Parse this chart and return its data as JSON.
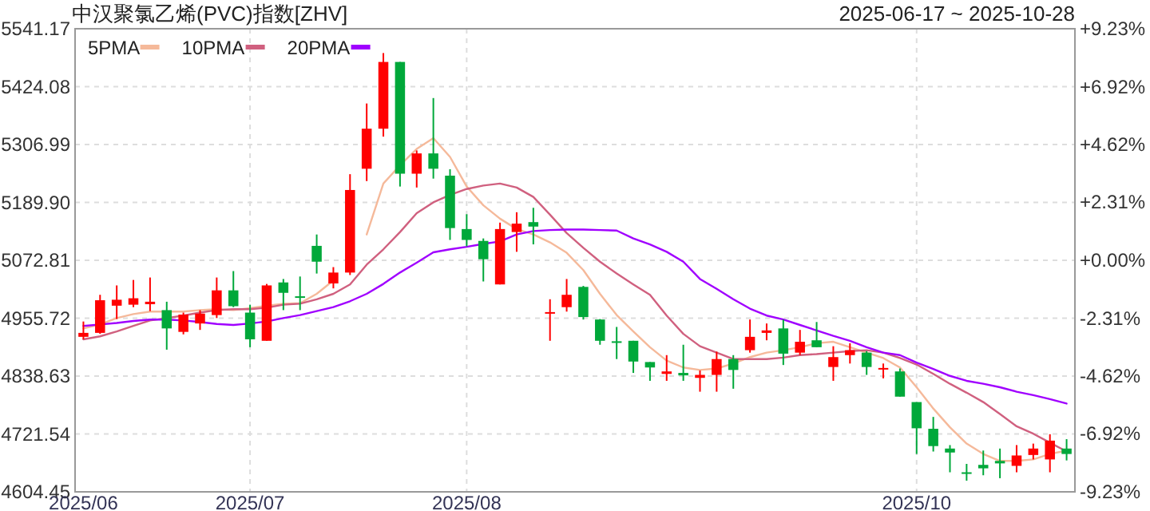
{
  "chart_data": {
    "type": "candlestick",
    "title": "中汉聚氯乙烯(PVC)指数[ZHV]",
    "subtitle": "2025-06-17 ~ 2025-10-28",
    "categories": [
      "2025/06",
      null,
      null,
      null,
      null,
      null,
      null,
      null,
      null,
      null,
      "2025/07",
      null,
      null,
      null,
      null,
      null,
      null,
      null,
      null,
      null,
      null,
      null,
      null,
      "2025/08",
      null,
      null,
      null,
      null,
      null,
      null,
      null,
      null,
      null,
      null,
      null,
      null,
      null,
      null,
      null,
      null,
      null,
      null,
      null,
      null,
      null,
      null,
      null,
      null,
      null,
      null,
      "2025/10",
      null,
      null,
      null,
      null,
      null,
      null,
      null,
      null,
      null
    ],
    "ohlc": [
      [
        4918,
        4949,
        4913,
        4926
      ],
      [
        4926,
        5003,
        4924,
        4992
      ],
      [
        4981,
        5022,
        4954,
        4993
      ],
      [
        4983,
        5033,
        4978,
        4996
      ],
      [
        4984,
        5038,
        4970,
        4989
      ],
      [
        4972,
        4989,
        4892,
        4935
      ],
      [
        4928,
        4967,
        4923,
        4963
      ],
      [
        4945,
        4972,
        4932,
        4965
      ],
      [
        4962,
        5038,
        4956,
        5012
      ],
      [
        5012,
        5051,
        4978,
        4980
      ],
      [
        4967,
        4983,
        4897,
        4913
      ],
      [
        4910,
        5025,
        4910,
        5022
      ],
      [
        5028,
        5035,
        4972,
        5007
      ],
      [
        5000,
        5040,
        4972,
        4998
      ],
      [
        5102,
        5125,
        5046,
        5070
      ],
      [
        5026,
        5059,
        5016,
        5048
      ],
      [
        5048,
        5247,
        5043,
        5215
      ],
      [
        5258,
        5390,
        5233,
        5339
      ],
      [
        5339,
        5492,
        5323,
        5474
      ],
      [
        5474,
        5474,
        5222,
        5248
      ],
      [
        5248,
        5295,
        5220,
        5289
      ],
      [
        5289,
        5401,
        5238,
        5258
      ],
      [
        5244,
        5257,
        5114,
        5138
      ],
      [
        5136,
        5166,
        5101,
        5114
      ],
      [
        5112,
        5117,
        5030,
        5075
      ],
      [
        5024,
        5149,
        5024,
        5136
      ],
      [
        5130,
        5170,
        5090,
        5147
      ],
      [
        5150,
        5179,
        5105,
        5141
      ],
      [
        4966,
        4994,
        4910,
        4968
      ],
      [
        4978,
        5035,
        4969,
        5003
      ],
      [
        5019,
        5021,
        4953,
        4958
      ],
      [
        4953,
        4954,
        4902,
        4910
      ],
      [
        4909,
        4938,
        4873,
        4907
      ],
      [
        4910,
        4910,
        4845,
        4868
      ],
      [
        4867,
        4867,
        4829,
        4856
      ],
      [
        4843,
        4881,
        4829,
        4848
      ],
      [
        4845,
        4902,
        4829,
        4840
      ],
      [
        4835,
        4850,
        4807,
        4841
      ],
      [
        4841,
        4888,
        4807,
        4873
      ],
      [
        4873,
        4881,
        4813,
        4851
      ],
      [
        4891,
        4953,
        4886,
        4918
      ],
      [
        4926,
        4945,
        4911,
        4931
      ],
      [
        4935,
        4953,
        4861,
        4884
      ],
      [
        4886,
        4932,
        4881,
        4908
      ],
      [
        4911,
        4948,
        4897,
        4897
      ],
      [
        4857,
        4899,
        4829,
        4877
      ],
      [
        4881,
        4905,
        4864,
        4891
      ],
      [
        4886,
        4889,
        4841,
        4857
      ],
      [
        4853,
        4864,
        4834,
        4855
      ],
      [
        4848,
        4854,
        4797,
        4797
      ],
      [
        4786,
        4786,
        4681,
        4733
      ],
      [
        4732,
        4756,
        4686,
        4697
      ],
      [
        4692,
        4699,
        4644,
        4684
      ],
      [
        4644,
        4661,
        4627,
        4642
      ],
      [
        4659,
        4688,
        4638,
        4652
      ],
      [
        4667,
        4692,
        4632,
        4662
      ],
      [
        4657,
        4699,
        4644,
        4678
      ],
      [
        4679,
        4702,
        4670,
        4692
      ],
      [
        4670,
        4721,
        4644,
        4708
      ],
      [
        4692,
        4711,
        4668,
        4681
      ]
    ],
    "colors": [
      "#ff0000",
      "#ff0000",
      "#ff0000",
      "#ff0000",
      "#ff0000",
      "#00a83a",
      "#ff0000",
      "#ff0000",
      "#ff0000",
      "#00a83a",
      "#00a83a",
      "#ff0000",
      "#00a83a",
      "#00a83a",
      "#00a83a",
      "#ff0000",
      "#ff0000",
      "#ff0000",
      "#ff0000",
      "#00a83a",
      "#ff0000",
      "#00a83a",
      "#00a83a",
      "#00a83a",
      "#00a83a",
      "#ff0000",
      "#ff0000",
      "#00a83a",
      "#ff0000",
      "#ff0000",
      "#00a83a",
      "#00a83a",
      "#00a83a",
      "#00a83a",
      "#00a83a",
      "#ff0000",
      "#00a83a",
      "#ff0000",
      "#ff0000",
      "#00a83a",
      "#ff0000",
      "#ff0000",
      "#00a83a",
      "#ff0000",
      "#00a83a",
      "#ff0000",
      "#ff0000",
      "#00a83a",
      "#ff0000",
      "#00a83a",
      "#00a83a",
      "#00a83a",
      "#00a83a",
      "#00a83a",
      "#00a83a",
      "#00a83a",
      "#ff0000",
      "#ff0000",
      "#ff0000",
      "#00a83a"
    ],
    "series": [
      {
        "name": "5PMA",
        "type": "line",
        "color": "#f5b99a",
        "values": [
          4935,
          4943,
          4956,
          4964,
          4969,
          4969,
          4969,
          4972,
          4974,
          4972,
          4976,
          4981,
          4985,
          4986,
          5005,
          5032,
          null,
          5125,
          5228,
          5265,
          5298,
          5320,
          5282,
          5222,
          5184,
          5157,
          5136,
          5125,
          5109,
          5088,
          5053,
          5005,
          4962,
          4929,
          4897,
          4870,
          4856,
          4851,
          4854,
          4864,
          4877,
          4886,
          4891,
          4897,
          4905,
          4908,
          4897,
          4886,
          4875,
          4856,
          4816,
          4773,
          4735,
          4702,
          4681,
          4667,
          4667,
          4670,
          4681,
          4688
        ]
      },
      {
        "name": "10PMA",
        "type": "line",
        "color": "#d0607f",
        "values": [
          4913,
          4919,
          4929,
          4940,
          4951,
          4956,
          4961,
          4967,
          4972,
          4974,
          4974,
          4977,
          4983,
          4985,
          4994,
          5005,
          5024,
          5064,
          5095,
          5130,
          5168,
          5190,
          5205,
          5217,
          5224,
          5228,
          5220,
          5201,
          5165,
          5128,
          5098,
          5070,
          5046,
          5024,
          5003,
          4961,
          4924,
          4899,
          4886,
          4873,
          4873,
          4873,
          4876,
          4881,
          4883,
          4886,
          4889,
          4891,
          4886,
          4875,
          4862,
          4843,
          4823,
          4805,
          4786,
          4762,
          4737,
          4722,
          4704,
          4686
        ]
      },
      {
        "name": "20PMA",
        "type": "line",
        "color": "#a000ff",
        "values": [
          4940,
          4943,
          4946,
          4950,
          4953,
          4953,
          4951,
          4948,
          4944,
          4942,
          4945,
          4949,
          4956,
          4962,
          4970,
          4978,
          4990,
          5005,
          5025,
          5048,
          5068,
          5089,
          5095,
          5100,
          5106,
          5111,
          5125,
          5132,
          5134,
          5135,
          5135,
          5134,
          5133,
          5117,
          5105,
          5090,
          5070,
          5035,
          5015,
          4994,
          4975,
          4961,
          4953,
          4942,
          4931,
          4920,
          4910,
          4897,
          4886,
          4881,
          4866,
          4853,
          4839,
          4829,
          4823,
          4816,
          4807,
          4800,
          4792,
          4783
        ]
      }
    ],
    "ylim": [
      4604.45,
      5541.17
    ],
    "yticks": [
      4604.45,
      4721.54,
      4838.63,
      4955.72,
      5072.81,
      {
        "value": 5189.9,
        "label": "5189.90"
      },
      5306.99,
      5424.08,
      5541.17
    ],
    "y2lim": [
      -9.23,
      9.23
    ],
    "y2ticks": [
      {
        "value": -9.23,
        "label": "-9.23%"
      },
      {
        "value": -6.92,
        "label": "-6.92%"
      },
      {
        "value": -4.62,
        "label": "-4.62%"
      },
      {
        "value": -2.31,
        "label": "-2.31%"
      },
      {
        "value": 0,
        "label": "+0.00%"
      },
      {
        "value": 2.31,
        "label": "+2.31%"
      },
      {
        "value": 4.62,
        "label": "+4.62%"
      },
      {
        "value": 6.92,
        "label": "+6.92%"
      },
      {
        "value": 9.23,
        "label": "+9.23%"
      }
    ],
    "grid": true,
    "legend": "top left"
  }
}
